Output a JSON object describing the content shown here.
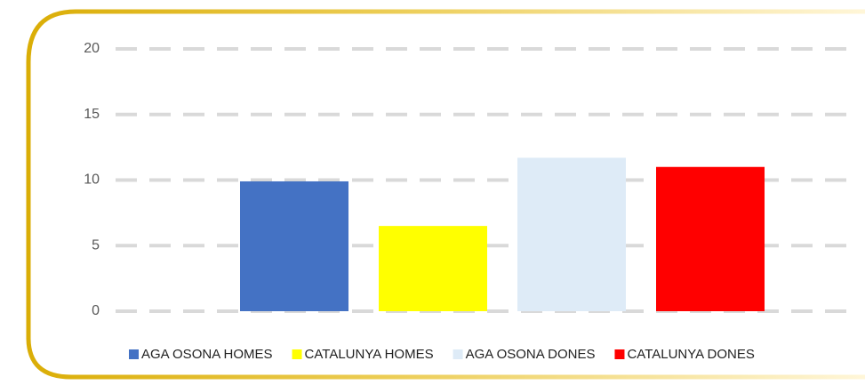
{
  "chart_data": {
    "type": "bar",
    "categories": [
      null
    ],
    "series": [
      {
        "name": "AGA OSONA HOMES",
        "color": "#4472c4",
        "values": [
          9.9
        ]
      },
      {
        "name": "CATALUNYA HOMES",
        "color": "#ffff00",
        "values": [
          6.5
        ]
      },
      {
        "name": "AGA OSONA DONES",
        "color": "#deebf7",
        "values": [
          11.7
        ]
      },
      {
        "name": "CATALUNYA DONES",
        "color": "#ff0000",
        "values": [
          11.0
        ]
      }
    ],
    "ylim": [
      0,
      20
    ],
    "yticks": [
      0,
      5,
      10,
      15,
      20
    ],
    "grid": true,
    "legend": "bottom"
  }
}
